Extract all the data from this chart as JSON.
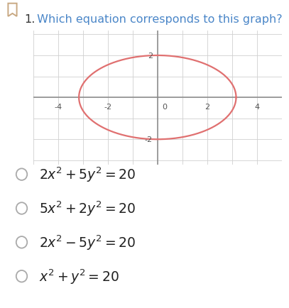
{
  "title_number": "1.",
  "title_text": " Which equation corresponds to this graph?",
  "title_color": "#4a86c8",
  "title_fontsize": 11.5,
  "bookmark_color": "#c8a882",
  "ellipse_color": "#e07070",
  "ellipse_linewidth": 1.6,
  "ellipse_a": 3.1623,
  "ellipse_b": 2.0,
  "xlim": [
    -5,
    5
  ],
  "ylim": [
    -3.2,
    3.2
  ],
  "x_ticks": [
    -4,
    -2,
    0,
    2,
    4
  ],
  "y_ticks": [
    -2,
    2
  ],
  "grid_color": "#d0d0d0",
  "axis_color": "#888888",
  "tick_fontsize": 8,
  "tick_color": "#555555",
  "options_latex": [
    "$2x^2 + 5y^2 = 20$",
    "$5x^2 + 2y^2 = 20$",
    "$2x^2 - 5y^2 = 20$",
    "$x^2 + y^2 = 20$"
  ],
  "option_fontsize": 13.5,
  "radio_color": "#aaaaaa",
  "background_color": "#ffffff"
}
